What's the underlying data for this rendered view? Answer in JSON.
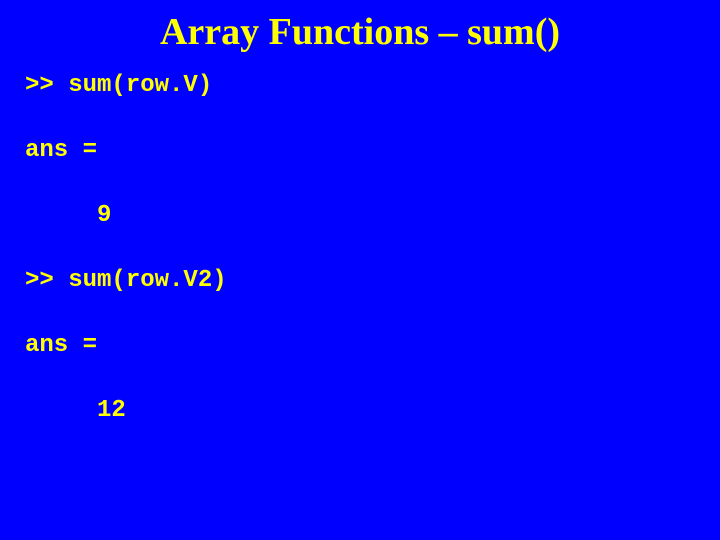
{
  "slide": {
    "title": "Array Functions – sum()",
    "background_color": "#0000ff",
    "text_color": "#ffff00",
    "title_font": "Times New Roman",
    "title_fontsize": 38,
    "code_font": "Courier New",
    "code_fontsize": 24,
    "code_fontweight": "bold",
    "lines": [
      {
        "text": ">> sum(row.V)",
        "indented": false
      },
      {
        "text": "ans =",
        "indented": false
      },
      {
        "text": "9",
        "indented": true
      },
      {
        "text": ">> sum(row.V2)",
        "indented": false
      },
      {
        "text": "ans =",
        "indented": false
      },
      {
        "text": "12",
        "indented": true
      }
    ]
  }
}
